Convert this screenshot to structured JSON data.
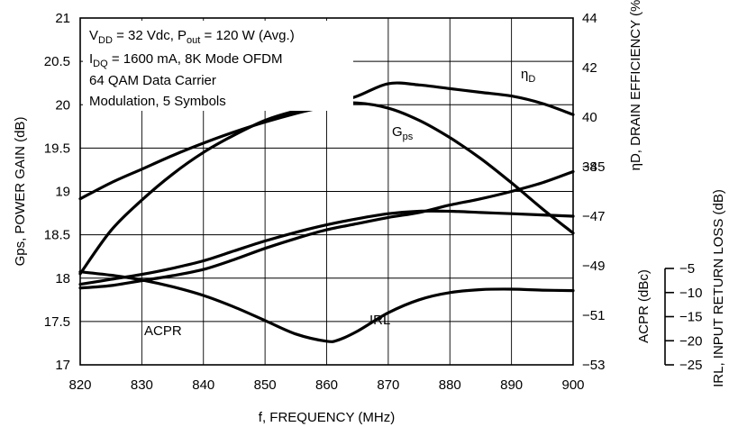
{
  "chart_data": {
    "type": "line",
    "xlabel": "f, FREQUENCY (MHz)",
    "ylabel_left": "Gps, POWER GAIN (dB)",
    "ylabel_right_efficiency": "ηD, DRAIN EFFICIENCY (%)",
    "ylabel_right_acpr": "ACPR (dBc)",
    "ylabel_right_irl": "IRL, INPUT RETURN LOSS (dB)",
    "xlim": [
      820,
      900
    ],
    "xticks": [
      "820",
      "830",
      "840",
      "850",
      "860",
      "870",
      "880",
      "890",
      "900"
    ],
    "gain_axis": {
      "lim": [
        17,
        21
      ],
      "ticks": [
        "17",
        "17.5",
        "18",
        "18.5",
        "19",
        "19.5",
        "20",
        "20.5",
        "21"
      ]
    },
    "efficiency_axis": {
      "lim": [
        30,
        44
      ],
      "ticks": [
        "40",
        "42",
        "44",
        "38"
      ]
    },
    "acpr_axis": {
      "lim": [
        -53,
        -39
      ],
      "ticks": [
        "-45",
        "-47",
        "-49",
        "-51",
        "-53"
      ]
    },
    "irl_axis": {
      "lim": [
        -25,
        -5
      ],
      "ticks": [
        "-5",
        "-10",
        "-15",
        "-20",
        "-25"
      ]
    },
    "grid": true,
    "annotations": [
      {
        "id": "vdd",
        "base": "V",
        "sub": "DD",
        "rest": " = 32 Vdc, P",
        "sub2": "out",
        "rest2": " = 120 W (Avg.)"
      },
      {
        "id": "idq",
        "base": "I",
        "sub": "DQ",
        "rest": " = 1600 mA, 8K Mode OFDM",
        "sub2": "",
        "rest2": ""
      },
      {
        "id": "mod1",
        "base": "64 QAM Data Carrier",
        "sub": "",
        "rest": "",
        "sub2": "",
        "rest2": ""
      },
      {
        "id": "mod2",
        "base": "Modulation, 5 Symbols",
        "sub": "",
        "rest": "",
        "sub2": "",
        "rest2": ""
      }
    ],
    "series": [
      {
        "name": "Gps",
        "label_base": "G",
        "label_sub": "ps",
        "axis": "gain",
        "x": [
          820,
          825,
          830,
          835,
          840,
          845,
          850,
          855,
          860,
          865,
          870,
          875,
          880,
          885,
          890,
          895,
          900
        ],
        "y": [
          18.05,
          18.55,
          18.9,
          19.2,
          19.45,
          19.65,
          19.82,
          19.93,
          20.0,
          20.02,
          19.96,
          19.82,
          19.62,
          19.38,
          19.1,
          18.8,
          18.52
        ]
      },
      {
        "name": "ηD",
        "label_base": "η",
        "label_sub": "D",
        "axis": "efficiency",
        "x": [
          820,
          825,
          830,
          835,
          840,
          845,
          850,
          855,
          860,
          865,
          870,
          875,
          880,
          885,
          890,
          895,
          900
        ],
        "y": [
          36.7,
          37.35,
          37.9,
          38.45,
          38.95,
          39.4,
          39.8,
          40.15,
          40.45,
          40.85,
          41.35,
          41.3,
          41.15,
          41.0,
          40.85,
          40.55,
          40.1
        ]
      },
      {
        "name": "ACPR",
        "label_base": "ACPR",
        "label_sub": "",
        "axis": "acpr",
        "x": [
          820,
          825,
          830,
          835,
          840,
          845,
          850,
          855,
          860,
          865,
          870,
          875,
          880,
          885,
          890,
          895,
          900
        ],
        "y": [
          -49.9,
          -49.8,
          -49.6,
          -49.4,
          -49.15,
          -48.75,
          -48.3,
          -47.9,
          -47.55,
          -47.3,
          -47.05,
          -46.85,
          -46.55,
          -46.3,
          -46.0,
          -45.65,
          -45.2
        ]
      },
      {
        "name": "IRL",
        "label_base": "IRL",
        "label_sub": "",
        "axis": "irl",
        "x": [
          820,
          825,
          830,
          835,
          840,
          845,
          850,
          855,
          860,
          862,
          865,
          870,
          875,
          880,
          885,
          890,
          895,
          900
        ],
        "y": [
          -5.7,
          -6.4,
          -7.4,
          -8.8,
          -10.6,
          -13.0,
          -15.8,
          -18.6,
          -20.1,
          -19.8,
          -18.0,
          -14.2,
          -11.5,
          -10.0,
          -9.4,
          -9.3,
          -9.5,
          -9.6
        ]
      },
      {
        "name": "ACPR2",
        "label_base": "",
        "label_sub": "",
        "axis": "acpr",
        "x": [
          820,
          825,
          830,
          835,
          840,
          845,
          850,
          855,
          860,
          865,
          870,
          875,
          880,
          885,
          890,
          895,
          900
        ],
        "y": [
          -49.75,
          -49.55,
          -49.35,
          -49.1,
          -48.8,
          -48.4,
          -48.0,
          -47.65,
          -47.35,
          -47.1,
          -46.9,
          -46.8,
          -46.8,
          -46.85,
          -46.9,
          -46.95,
          -47.0
        ]
      }
    ]
  }
}
